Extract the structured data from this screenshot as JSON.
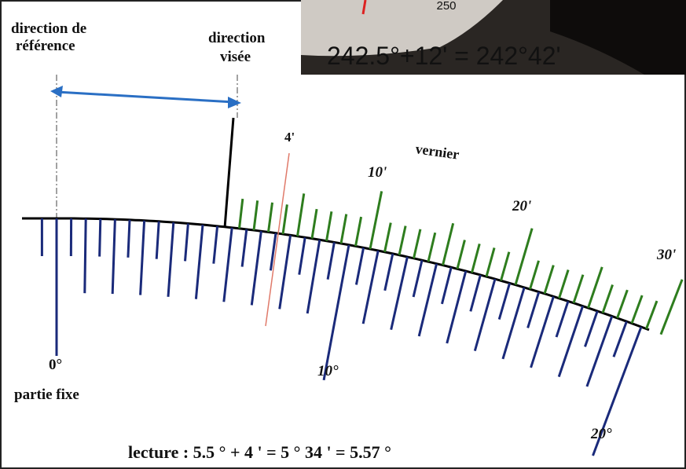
{
  "labels": {
    "reference_line1": "direction de",
    "reference_line2": "référence",
    "target_line1": "direction",
    "target_line2": "visée",
    "vernier_reading": "4'",
    "vernier": "vernier",
    "vernier_10": "10'",
    "vernier_20": "20'",
    "vernier_30": "30'",
    "fixed_0": "0°",
    "fixed_10": "10°",
    "fixed_20": "20°",
    "fixed_part": "partie fixe",
    "reading": "lecture : 5.5 ° + 4 ' = 5 ° 34 ' = 5.57 °"
  },
  "inset": {
    "scale_number": "250",
    "reading": "242.5°+12' = 242°42'"
  }
}
